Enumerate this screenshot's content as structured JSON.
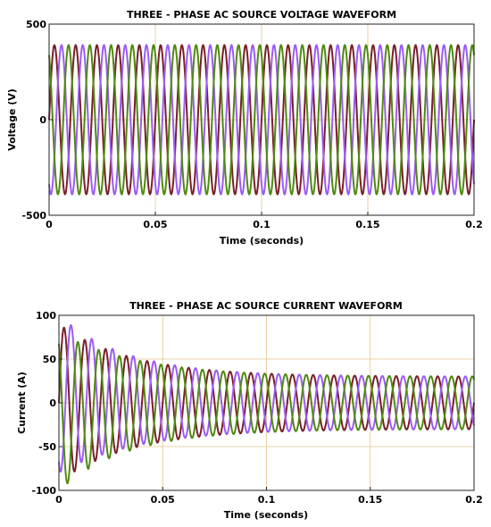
{
  "chart_data": [
    {
      "type": "line",
      "title": "THREE - PHASE AC SOURCE VOLTAGE WAVEFORM",
      "xlabel": "Time (seconds)",
      "ylabel": "Voltage (V)",
      "xlim": [
        0,
        0.2
      ],
      "ylim": [
        -500,
        500
      ],
      "xticks": [
        0,
        0.05,
        0.1,
        0.15,
        0.2
      ],
      "yticks": [
        -500,
        0,
        500
      ],
      "xtick_labels": [
        "0",
        "0.05",
        "0.1",
        "0.15",
        "0.2"
      ],
      "ytick_labels": [
        "-500",
        "0",
        "500"
      ],
      "grid": true,
      "frequency_hz": 100,
      "amplitude": 390,
      "series": [
        {
          "phase_deg": 0,
          "color": "#7a1f2b"
        },
        {
          "phase_deg": -120,
          "color": "#9b5cf5"
        },
        {
          "phase_deg": 120,
          "color": "#4f8a10"
        }
      ]
    },
    {
      "type": "line",
      "title": "THREE - PHASE AC SOURCE CURRENT WAVEFORM",
      "xlabel": "Time (seconds)",
      "ylabel": "Current (A)",
      "xlim": [
        0,
        0.2
      ],
      "ylim": [
        -100,
        100
      ],
      "xticks": [
        0,
        0.05,
        0.1,
        0.15,
        0.2
      ],
      "yticks": [
        -100,
        -50,
        0,
        50,
        100
      ],
      "xtick_labels": [
        "0",
        "0.05",
        "0.1",
        "0.15",
        "0.2"
      ],
      "ytick_labels": [
        "-100",
        "-50",
        "0",
        "50",
        "100"
      ],
      "grid": true,
      "frequency_hz": 100,
      "steady_amplitude": 30,
      "transient_amplitude": 60,
      "transient_decay_s": 0.035,
      "series": [
        {
          "phase_deg": 0,
          "color": "#7a1f2b"
        },
        {
          "phase_deg": -120,
          "color": "#9b5cf5"
        },
        {
          "phase_deg": 120,
          "color": "#4f8a10"
        }
      ]
    }
  ]
}
